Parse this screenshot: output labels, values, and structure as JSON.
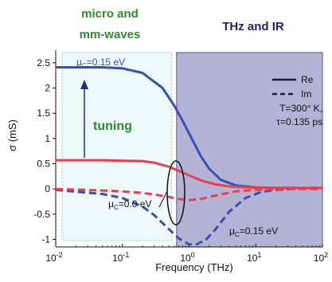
{
  "chart_data": {
    "type": "line",
    "xlabel": "Frequency (THz)",
    "ylabel": "σ  (mS)",
    "xscale": "log",
    "xlim": [
      0.01,
      100
    ],
    "ylim": [
      -1.15,
      2.75
    ],
    "x_ticks": [
      {
        "value": 0.01,
        "base": "10",
        "exp": "-2"
      },
      {
        "value": 0.1,
        "base": "10",
        "exp": "-1"
      },
      {
        "value": 1,
        "base": "10",
        "exp": "0"
      },
      {
        "value": 10,
        "base": "10",
        "exp": "1"
      },
      {
        "value": 100,
        "base": "10",
        "exp": "2"
      }
    ],
    "y_ticks": [
      {
        "value": 2.5,
        "label": "2.5"
      },
      {
        "value": 2,
        "label": "2"
      },
      {
        "value": 1.5,
        "label": "1.5"
      },
      {
        "value": 1,
        "label": "1"
      },
      {
        "value": 0.5,
        "label": "0.5"
      },
      {
        "value": 0,
        "label": "0"
      },
      {
        "value": -0.5,
        "label": "-0.5"
      },
      {
        "value": -1,
        "label": "-1"
      }
    ],
    "regions": [
      {
        "label_lines": [
          "micro and",
          "mm-waves"
        ],
        "x_range": [
          0.0125,
          0.55
        ],
        "fill": "#eef9fb",
        "stroke": "#7fcfd8",
        "label_color": "#2e8b2e"
      },
      {
        "label_lines": [
          "THz and IR"
        ],
        "x_range": [
          0.65,
          100
        ],
        "fill": "#b3b3d6",
        "stroke": "#55558a",
        "label_color": "#1f1f66"
      }
    ],
    "series": [
      {
        "color": "#3a4fb5",
        "dash": "solid",
        "x": [
          0.01,
          0.05,
          0.1,
          0.2,
          0.4,
          0.6,
          0.8,
          1,
          1.5,
          2,
          3,
          5,
          10,
          20,
          50,
          100
        ],
        "y": [
          2.41,
          2.41,
          2.39,
          2.3,
          2.0,
          1.65,
          1.35,
          1.1,
          0.65,
          0.4,
          0.18,
          0.07,
          0.03,
          0.02,
          0.02,
          0.02
        ]
      },
      {
        "color": "#3a4fb5",
        "dash": "dashed",
        "x": [
          0.01,
          0.05,
          0.1,
          0.2,
          0.3,
          0.5,
          0.7,
          1,
          1.3,
          1.8,
          2.5,
          4,
          7,
          12,
          20,
          50,
          100
        ],
        "y": [
          -0.02,
          -0.1,
          -0.18,
          -0.35,
          -0.52,
          -0.8,
          -0.98,
          -1.1,
          -1.1,
          -1.0,
          -0.8,
          -0.45,
          -0.18,
          -0.06,
          -0.02,
          0.01,
          0.02
        ]
      },
      {
        "color": "#e8404a",
        "dash": "solid",
        "x": [
          0.01,
          0.05,
          0.1,
          0.2,
          0.3,
          0.5,
          0.7,
          1,
          1.5,
          2.5,
          4,
          7,
          15,
          100
        ],
        "y": [
          0.57,
          0.57,
          0.56,
          0.55,
          0.52,
          0.44,
          0.36,
          0.27,
          0.17,
          0.09,
          0.05,
          0.03,
          0.02,
          0.02
        ]
      },
      {
        "color": "#e8404a",
        "dash": "dashed",
        "x": [
          0.01,
          0.05,
          0.1,
          0.2,
          0.3,
          0.5,
          0.7,
          1,
          1.5,
          2.5,
          5,
          10,
          30,
          100
        ],
        "y": [
          0.0,
          -0.03,
          -0.05,
          -0.08,
          -0.11,
          -0.16,
          -0.2,
          -0.22,
          -0.2,
          -0.13,
          -0.05,
          -0.02,
          0.0,
          0.0
        ]
      }
    ],
    "legend": {
      "placement": "top-right",
      "entries": [
        {
          "label": "Re",
          "dash": "solid"
        },
        {
          "label": "Im",
          "dash": "dashed"
        }
      ],
      "note_lines": [
        "T=300° K,",
        "τ=0.135 ps"
      ]
    },
    "annotations": [
      {
        "id": "mu-blue-top",
        "prefix": "μ",
        "sub": "C",
        "text": "=0.15 eV"
      },
      {
        "id": "mu-red",
        "prefix": "μ",
        "sub": "C",
        "text": "=0.0 eV"
      },
      {
        "id": "mu-blue-bottom",
        "prefix": "μ",
        "sub": "C",
        "text": "=0.15 eV"
      },
      {
        "id": "tuning",
        "text": "tuning",
        "color": "#2e8b2e"
      }
    ]
  }
}
